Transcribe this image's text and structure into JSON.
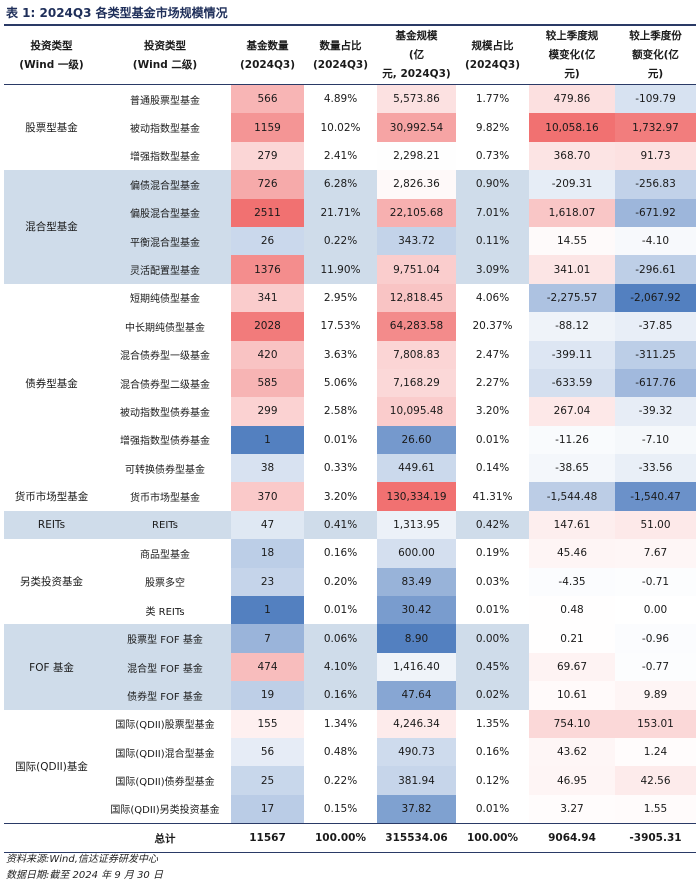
{
  "title": "表 1:  2024Q3 各类型基金市场规模情况",
  "headers": [
    [
      "投资类型",
      "(Wind 一级)"
    ],
    [
      "投资类型",
      "(Wind 二级)"
    ],
    [
      "基金数量",
      "(2024Q3)"
    ],
    [
      "数量占比",
      "(2024Q3)"
    ],
    [
      "基金规模",
      "(亿",
      "元, 2024Q3)"
    ],
    [
      "规模占比",
      "(2024Q3)"
    ],
    [
      "较上季度规",
      "模变化(亿",
      "元)"
    ],
    [
      "较上季度份",
      "额变化(亿",
      "元)"
    ]
  ],
  "groups": [
    {
      "name": "股票型基金",
      "shade": "#ffffff",
      "rows": [
        {
          "name": "普通股票型基金",
          "count": "566",
          "count_pct": "4.89%",
          "size": "5,573.86",
          "size_pct": "1.77%",
          "size_chg": "479.86",
          "share_chg": "-109.79"
        },
        {
          "name": "被动指数型基金",
          "count": "1159",
          "count_pct": "10.02%",
          "size": "30,992.54",
          "size_pct": "9.82%",
          "size_chg": "10,058.16",
          "share_chg": "1,732.97"
        },
        {
          "name": "增强指数型基金",
          "count": "279",
          "count_pct": "2.41%",
          "size": "2,298.21",
          "size_pct": "0.73%",
          "size_chg": "368.70",
          "share_chg": "91.73"
        }
      ]
    },
    {
      "name": "混合型基金",
      "shade": "#cfdcea",
      "rows": [
        {
          "name": "偏债混合型基金",
          "count": "726",
          "count_pct": "6.28%",
          "size": "2,826.36",
          "size_pct": "0.90%",
          "size_chg": "-209.31",
          "share_chg": "-256.83"
        },
        {
          "name": "偏股混合型基金",
          "count": "2511",
          "count_pct": "21.71%",
          "size": "22,105.68",
          "size_pct": "7.01%",
          "size_chg": "1,618.07",
          "share_chg": "-671.92"
        },
        {
          "name": "平衡混合型基金",
          "count": "26",
          "count_pct": "0.22%",
          "size": "343.72",
          "size_pct": "0.11%",
          "size_chg": "14.55",
          "share_chg": "-4.10"
        },
        {
          "name": "灵活配置型基金",
          "count": "1376",
          "count_pct": "11.90%",
          "size": "9,751.04",
          "size_pct": "3.09%",
          "size_chg": "341.01",
          "share_chg": "-296.61"
        }
      ]
    },
    {
      "name": "债券型基金",
      "shade": "#ffffff",
      "rows": [
        {
          "name": "短期纯债型基金",
          "count": "341",
          "count_pct": "2.95%",
          "size": "12,818.45",
          "size_pct": "4.06%",
          "size_chg": "-2,275.57",
          "share_chg": "-2,067.92"
        },
        {
          "name": "中长期纯债型基金",
          "count": "2028",
          "count_pct": "17.53%",
          "size": "64,283.58",
          "size_pct": "20.37%",
          "size_chg": "-88.12",
          "share_chg": "-37.85"
        },
        {
          "name": "混合债券型一级基金",
          "count": "420",
          "count_pct": "3.63%",
          "size": "7,808.83",
          "size_pct": "2.47%",
          "size_chg": "-399.11",
          "share_chg": "-311.25"
        },
        {
          "name": "混合债券型二级基金",
          "count": "585",
          "count_pct": "5.06%",
          "size": "7,168.29",
          "size_pct": "2.27%",
          "size_chg": "-633.59",
          "share_chg": "-617.76"
        },
        {
          "name": "被动指数型债券基金",
          "count": "299",
          "count_pct": "2.58%",
          "size": "10,095.48",
          "size_pct": "3.20%",
          "size_chg": "267.04",
          "share_chg": "-39.32"
        },
        {
          "name": "增强指数型债券基金",
          "count": "1",
          "count_pct": "0.01%",
          "size": "26.60",
          "size_pct": "0.01%",
          "size_chg": "-11.26",
          "share_chg": "-7.10"
        },
        {
          "name": "可转换债券型基金",
          "count": "38",
          "count_pct": "0.33%",
          "size": "449.61",
          "size_pct": "0.14%",
          "size_chg": "-38.65",
          "share_chg": "-33.56"
        }
      ]
    },
    {
      "name": "货币市场型基金",
      "shade": "#ffffff",
      "rows": [
        {
          "name": "货币市场型基金",
          "count": "370",
          "count_pct": "3.20%",
          "size": "130,334.19",
          "size_pct": "41.31%",
          "size_chg": "-1,544.48",
          "share_chg": "-1,540.47"
        }
      ]
    },
    {
      "name": "REITs",
      "shade": "#cfdcea",
      "rows": [
        {
          "name": "REITs",
          "count": "47",
          "count_pct": "0.41%",
          "size": "1,313.95",
          "size_pct": "0.42%",
          "size_chg": "147.61",
          "share_chg": "51.00"
        }
      ]
    },
    {
      "name": "另类投资基金",
      "shade": "#ffffff",
      "rows": [
        {
          "name": "商品型基金",
          "count": "18",
          "count_pct": "0.16%",
          "size": "600.00",
          "size_pct": "0.19%",
          "size_chg": "45.46",
          "share_chg": "7.67"
        },
        {
          "name": "股票多空",
          "count": "23",
          "count_pct": "0.20%",
          "size": "83.49",
          "size_pct": "0.03%",
          "size_chg": "-4.35",
          "share_chg": "-0.71"
        },
        {
          "name": "类 REITs",
          "count": "1",
          "count_pct": "0.01%",
          "size": "30.42",
          "size_pct": "0.01%",
          "size_chg": "0.48",
          "share_chg": "0.00"
        }
      ]
    },
    {
      "name": "FOF 基金",
      "shade": "#cfdcea",
      "rows": [
        {
          "name": "股票型 FOF 基金",
          "count": "7",
          "count_pct": "0.06%",
          "size": "8.90",
          "size_pct": "0.00%",
          "size_chg": "0.21",
          "share_chg": "-0.96"
        },
        {
          "name": "混合型 FOF 基金",
          "count": "474",
          "count_pct": "4.10%",
          "size": "1,416.40",
          "size_pct": "0.45%",
          "size_chg": "69.67",
          "share_chg": "-0.77"
        },
        {
          "name": "债券型 FOF 基金",
          "count": "19",
          "count_pct": "0.16%",
          "size": "47.64",
          "size_pct": "0.02%",
          "size_chg": "10.61",
          "share_chg": "9.89"
        }
      ]
    },
    {
      "name": "国际(QDII)基金",
      "shade": "#ffffff",
      "rows": [
        {
          "name": "国际(QDII)股票型基金",
          "count": "155",
          "count_pct": "1.34%",
          "size": "4,246.34",
          "size_pct": "1.35%",
          "size_chg": "754.10",
          "share_chg": "153.01"
        },
        {
          "name": "国际(QDII)混合型基金",
          "count": "56",
          "count_pct": "0.48%",
          "size": "490.73",
          "size_pct": "0.16%",
          "size_chg": "43.62",
          "share_chg": "1.24"
        },
        {
          "name": "国际(QDII)债券型基金",
          "count": "25",
          "count_pct": "0.22%",
          "size": "381.94",
          "size_pct": "0.12%",
          "size_chg": "46.95",
          "share_chg": "42.56"
        },
        {
          "name": "国际(QDII)另类投资基金",
          "count": "17",
          "count_pct": "0.15%",
          "size": "37.82",
          "size_pct": "0.01%",
          "size_chg": "3.27",
          "share_chg": "1.55"
        }
      ]
    }
  ],
  "total": {
    "label": "总计",
    "count": "11567",
    "count_pct": "100.00%",
    "size": "315534.06",
    "size_pct": "100.00%",
    "size_chg": "9064.94",
    "share_chg": "-3905.31"
  },
  "source": "资料来源:Wind,信达证券研发中心",
  "data_date": "数据日期:截至 2024 年 9 月 30 日",
  "colors": {
    "stripe": "#cfdcea",
    "red": "#f06a6a",
    "blue": "#4a79bd",
    "rule": "#2a3a66"
  }
}
